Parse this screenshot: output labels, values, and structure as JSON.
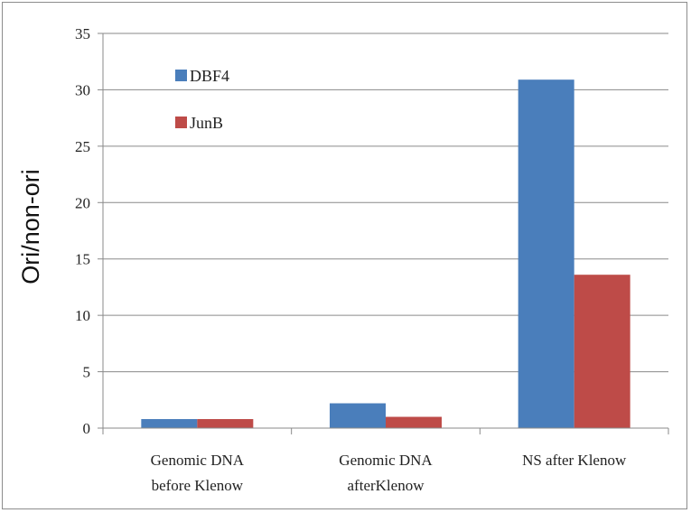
{
  "chart_data": {
    "type": "bar",
    "title": "",
    "xlabel": "",
    "ylabel": "Ori/non-ori",
    "ylim": [
      0,
      35
    ],
    "yticks": [
      0,
      5,
      10,
      15,
      20,
      25,
      30,
      35
    ],
    "grid": true,
    "legend_position": "top-left",
    "categories": [
      [
        "Genomic DNA",
        "before  Klenow"
      ],
      [
        "Genomic DNA",
        "afterKlenow"
      ],
      [
        "NS after  Klenow"
      ]
    ],
    "series": [
      {
        "name": "DBF4",
        "color": "#4a7ebb",
        "values": [
          0.8,
          2.2,
          30.9
        ]
      },
      {
        "name": "JunB",
        "color": "#be4b48",
        "values": [
          0.8,
          1.0,
          13.6
        ]
      }
    ]
  }
}
